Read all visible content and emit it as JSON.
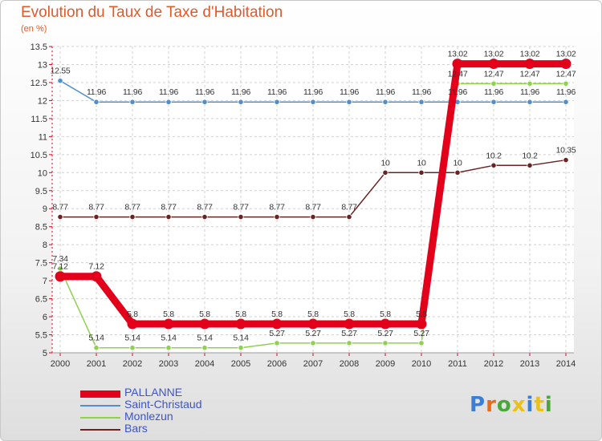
{
  "header": {
    "title": "Evolution du Taux de Taxe d'Habitation",
    "unit": "(en %)"
  },
  "logo": {
    "text": "Proxiti",
    "letter_colors": [
      "#3a7fd5",
      "#e86a1c",
      "#4aa83a",
      "#e8c21c",
      "#3a7fd5",
      "#e8c21c",
      "#4aa83a"
    ]
  },
  "chart_data": {
    "type": "line",
    "x": [
      "2000",
      "2001",
      "2002",
      "2003",
      "2004",
      "2005",
      "2006",
      "2007",
      "2008",
      "2009",
      "2010",
      "2011",
      "2012",
      "2013",
      "2014"
    ],
    "ylim": [
      5,
      13.5
    ],
    "yticks": [
      "5",
      "5.5",
      "6",
      "6.5",
      "7",
      "7.5",
      "8",
      "8.5",
      "9",
      "9.5",
      "10",
      "10.5",
      "11",
      "11.5",
      "12",
      "12.5",
      "13",
      "13.5"
    ],
    "grid": "dashed horizontal and vertical",
    "legend_position": "bottom-left",
    "series": [
      {
        "name": "PALLANNE",
        "color": "#e3001b",
        "values": [
          7.12,
          7.12,
          5.8,
          5.8,
          5.8,
          5.8,
          5.8,
          5.8,
          5.8,
          5.8,
          5.8,
          13.02,
          13.02,
          13.02,
          13.02
        ],
        "labels": [
          "7.12",
          "7.12",
          "5.8",
          "5.8",
          "5.8",
          "5.8",
          "5.8",
          "5.8",
          "5.8",
          "5.8",
          "5.8",
          "13.02",
          "13.02",
          "13.02",
          "13.02"
        ]
      },
      {
        "name": "Saint-Christaud",
        "color": "#4f8fd0",
        "values": [
          12.55,
          11.96,
          11.96,
          11.96,
          11.96,
          11.96,
          11.96,
          11.96,
          11.96,
          11.96,
          11.96,
          11.96,
          11.96,
          11.96,
          11.96
        ],
        "labels": [
          "12.55",
          "11.96",
          "11.96",
          "11.96",
          "11.96",
          "11.96",
          "11.96",
          "11.96",
          "11.96",
          "11.96",
          "11.96",
          "11.96",
          "11.96",
          "11.96",
          "11.96"
        ]
      },
      {
        "name": "Monlezun",
        "color": "#8fd14f",
        "values": [
          7.34,
          5.14,
          5.14,
          5.14,
          5.14,
          5.14,
          5.27,
          5.27,
          5.27,
          5.27,
          5.27,
          12.47,
          12.47,
          12.47,
          12.47
        ],
        "labels": [
          "7.34",
          "5.14",
          "5.14",
          "5.14",
          "5.14",
          "5.14",
          "5.27",
          "5.27",
          "5.27",
          "5.27",
          "5.27",
          "12.47",
          "12.47",
          "12.47",
          "12.47"
        ]
      },
      {
        "name": "Bars",
        "color": "#6b2222",
        "values": [
          8.77,
          8.77,
          8.77,
          8.77,
          8.77,
          8.77,
          8.77,
          8.77,
          8.77,
          10,
          10,
          10,
          10.2,
          10.2,
          10.35
        ],
        "labels": [
          "8.77",
          "8.77",
          "8.77",
          "8.77",
          "8.77",
          "8.77",
          "8.77",
          "8.77",
          "8.77",
          "10",
          "10",
          "10",
          "10.2",
          "10.2",
          "10.35"
        ]
      }
    ]
  }
}
